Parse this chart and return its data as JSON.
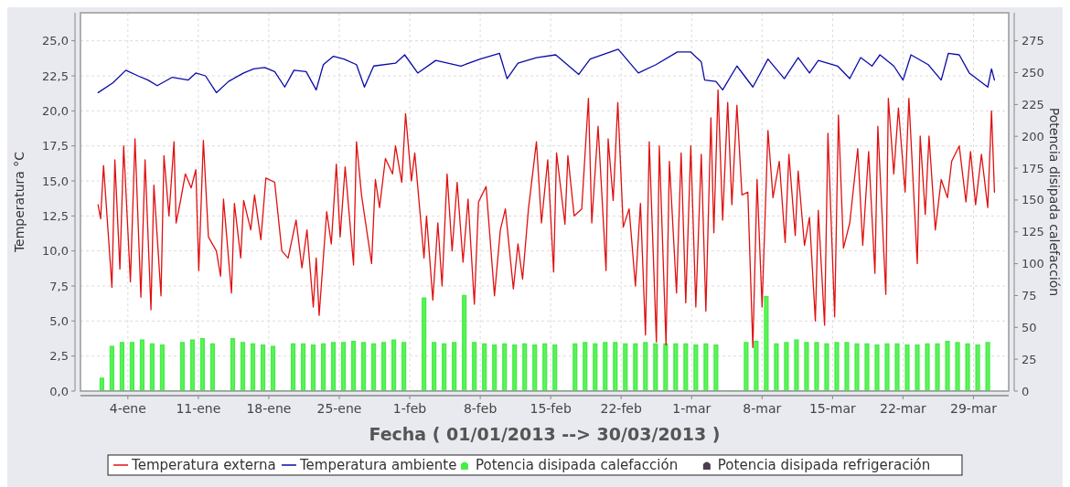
{
  "chart_data": {
    "type": "line",
    "xlabel": "Fecha ( 01/01/2013 --> 30/03/2013 )",
    "ylabel": "Temperatura °C",
    "y2label": "Potencia disipada calefacción",
    "xlim": [
      "2012-12-30T07:00",
      "2013-04-01T12:00"
    ],
    "xticks": [
      {
        "value": "2013-01-04",
        "label": "4-ene"
      },
      {
        "value": "2013-01-11",
        "label": "11-ene"
      },
      {
        "value": "2013-01-18",
        "label": "18-ene"
      },
      {
        "value": "2013-01-25",
        "label": "25-ene"
      },
      {
        "value": "2013-02-01",
        "label": "1-feb"
      },
      {
        "value": "2013-02-08",
        "label": "8-feb"
      },
      {
        "value": "2013-02-15",
        "label": "15-feb"
      },
      {
        "value": "2013-02-22",
        "label": "22-feb"
      },
      {
        "value": "2013-03-01",
        "label": "1-mar"
      },
      {
        "value": "2013-03-08",
        "label": "8-mar"
      },
      {
        "value": "2013-03-15",
        "label": "15-mar"
      },
      {
        "value": "2013-03-22",
        "label": "22-mar"
      },
      {
        "value": "2013-03-29",
        "label": "29-mar"
      }
    ],
    "ylim": [
      0,
      27
    ],
    "yticks": [
      {
        "value": 0,
        "label": "0,0"
      },
      {
        "value": 2.5,
        "label": "2,5"
      },
      {
        "value": 5,
        "label": "5,0"
      },
      {
        "value": 7.5,
        "label": "7,5"
      },
      {
        "value": 10,
        "label": "10,0"
      },
      {
        "value": 12.5,
        "label": "12,5"
      },
      {
        "value": 15,
        "label": "15,0"
      },
      {
        "value": 17.5,
        "label": "17,5"
      },
      {
        "value": 20,
        "label": "20,0"
      },
      {
        "value": 22.5,
        "label": "22,5"
      },
      {
        "value": 25,
        "label": "25,0"
      }
    ],
    "y2lim": [
      0,
      297
    ],
    "y2ticks": [
      0,
      25,
      50,
      75,
      100,
      125,
      150,
      175,
      200,
      225,
      250,
      275
    ],
    "grid": true,
    "legend": "bottom",
    "series": [
      {
        "name": "Temperatura externa",
        "color": "#e01010",
        "x": [
          "2013-01-01T01:00",
          "2013-01-01T07:00",
          "2013-01-01T14:00",
          "2013-01-02T10:00",
          "2013-01-02T17:00",
          "2013-01-03T05:00",
          "2013-01-03T14:00",
          "2013-01-04T06:00",
          "2013-01-04T17:00",
          "2013-01-05T07:00",
          "2013-01-05T17:00",
          "2013-01-06T07:00",
          "2013-01-06T14:00",
          "2013-01-07T07:00",
          "2013-01-07T14:00",
          "2013-01-08T02:00",
          "2013-01-08T14:00",
          "2013-01-08T19:00",
          "2013-01-09T05:00",
          "2013-01-09T17:00",
          "2013-01-10T07:00",
          "2013-01-10T18:00",
          "2013-01-11T01:00",
          "2013-01-11T12:00",
          "2013-01-12T00:00",
          "2013-01-12T19:00",
          "2013-01-13T05:00",
          "2013-01-13T12:00",
          "2013-01-14T07:00",
          "2013-01-14T14:00",
          "2013-01-15T05:00",
          "2013-01-15T12:00",
          "2013-01-16T05:00",
          "2013-01-16T14:00",
          "2013-01-17T05:00",
          "2013-01-17T17:00",
          "2013-01-18T14:00",
          "2013-01-19T07:00",
          "2013-01-19T22:00",
          "2013-01-20T17:00",
          "2013-01-21T07:00",
          "2013-01-21T19:00",
          "2013-01-22T10:00",
          "2013-01-22T17:00",
          "2013-01-23T00:00",
          "2013-01-23T18:00",
          "2013-01-24T05:00",
          "2013-01-24T17:00",
          "2013-01-25T02:00",
          "2013-01-25T14:00",
          "2013-01-26T10:00",
          "2013-01-26T17:00",
          "2013-01-27T05:00",
          "2013-01-28T05:00",
          "2013-01-28T14:00",
          "2013-01-29T00:00",
          "2013-01-29T14:00",
          "2013-01-30T07:00",
          "2013-01-30T14:00",
          "2013-01-31T05:00",
          "2013-01-31T14:00",
          "2013-02-01T04:00",
          "2013-02-01T12:00",
          "2013-02-02T10:00",
          "2013-02-02T16:00",
          "2013-02-03T07:00",
          "2013-02-03T19:00",
          "2013-02-04T05:00",
          "2013-02-04T17:00",
          "2013-02-05T05:00",
          "2013-02-05T17:00",
          "2013-02-06T07:00",
          "2013-02-06T19:00",
          "2013-02-07T10:00",
          "2013-02-07T20:00",
          "2013-02-08T14:00",
          "2013-02-09T10:00",
          "2013-02-10T00:00",
          "2013-02-10T12:00",
          "2013-02-11T07:00",
          "2013-02-11T18:00",
          "2013-02-12T05:00",
          "2013-02-12T19:00",
          "2013-02-13T14:00",
          "2013-02-14T02:00",
          "2013-02-14T17:00",
          "2013-02-15T07:00",
          "2013-02-15T14:00",
          "2013-02-16T10:00",
          "2013-02-16T17:00",
          "2013-02-17T08:00",
          "2013-02-18T02:00",
          "2013-02-18T18:00",
          "2013-02-19T02:00",
          "2013-02-19T17:00",
          "2013-02-20T12:00",
          "2013-02-20T17:00",
          "2013-02-21T05:00",
          "2013-02-21T16:00",
          "2013-02-22T05:00",
          "2013-02-22T19:00",
          "2013-02-23T10:00",
          "2013-02-23T22:00",
          "2013-02-24T10:00",
          "2013-02-24T19:00",
          "2013-02-25T12:00",
          "2013-02-25T19:00",
          "2013-02-26T11:00",
          "2013-02-26T19:00",
          "2013-02-27T12:00",
          "2013-02-27T23:00",
          "2013-02-28T10:00",
          "2013-02-28T22:00",
          "2013-03-01T10:00",
          "2013-03-01T23:00",
          "2013-03-02T10:00",
          "2013-03-02T22:00",
          "2013-03-03T05:00",
          "2013-03-03T15:00",
          "2013-03-04T02:00",
          "2013-03-04T14:00",
          "2013-03-05T00:00",
          "2013-03-05T12:00",
          "2013-03-06T00:00",
          "2013-03-06T14:00",
          "2013-03-07T02:00",
          "2013-03-07T12:00",
          "2013-03-08T00:00",
          "2013-03-08T14:00",
          "2013-03-09T02:00",
          "2013-03-09T17:00",
          "2013-03-10T07:00",
          "2013-03-10T16:00",
          "2013-03-11T07:00",
          "2013-03-11T14:00",
          "2013-03-12T05:00",
          "2013-03-12T17:00",
          "2013-03-13T07:00",
          "2013-03-13T14:00",
          "2013-03-14T05:00",
          "2013-03-14T13:00",
          "2013-03-15T05:00",
          "2013-03-15T14:00",
          "2013-03-16T02:00",
          "2013-03-16T17:00",
          "2013-03-17T12:00",
          "2013-03-18T00:00",
          "2013-03-18T14:00",
          "2013-03-19T05:00",
          "2013-03-19T12:00",
          "2013-03-20T07:00",
          "2013-03-20T13:00",
          "2013-03-21T02:00",
          "2013-03-21T13:00",
          "2013-03-22T05:00",
          "2013-03-22T14:00",
          "2013-03-23T10:00",
          "2013-03-23T17:00",
          "2013-03-24T05:00",
          "2013-03-24T14:00",
          "2013-03-25T05:00",
          "2013-03-25T19:00",
          "2013-03-26T10:00",
          "2013-03-26T20:00",
          "2013-03-27T14:00",
          "2013-03-28T06:00",
          "2013-03-28T17:00",
          "2013-03-29T05:00",
          "2013-03-29T19:00",
          "2013-03-30T10:00",
          "2013-03-30T19:00",
          "2013-03-31T02:00"
        ],
        "values": [
          13.3,
          12.3,
          16.1,
          7.4,
          16.5,
          8.7,
          17.5,
          7.8,
          18.0,
          6.7,
          16.5,
          5.8,
          14.7,
          6.8,
          16.8,
          12.5,
          17.8,
          12.0,
          13.5,
          15.5,
          14.5,
          15.8,
          8.6,
          17.9,
          11.0,
          10.0,
          8.2,
          13.7,
          7.0,
          13.4,
          9.5,
          13.6,
          11.5,
          14.0,
          10.8,
          15.2,
          14.9,
          10.0,
          9.5,
          12.2,
          8.8,
          11.5,
          6.0,
          9.5,
          5.4,
          12.8,
          10.5,
          16.2,
          11.0,
          16.0,
          9.0,
          17.8,
          14.0,
          9.1,
          15.1,
          13.1,
          16.6,
          15.5,
          17.5,
          14.9,
          19.8,
          15.0,
          17.0,
          9.5,
          12.5,
          6.5,
          12.0,
          7.5,
          15.5,
          10.0,
          14.9,
          9.2,
          13.7,
          6.2,
          13.5,
          14.6,
          6.8,
          11.5,
          13.0,
          7.3,
          10.5,
          8.0,
          13.0,
          17.8,
          12.0,
          16.5,
          8.5,
          17.0,
          11.9,
          16.8,
          12.5,
          13.0,
          20.9,
          12.0,
          18.9,
          8.6,
          18.0,
          13.6,
          20.6,
          11.7,
          13.0,
          7.5,
          13.4,
          4.0,
          17.8,
          3.5,
          17.5,
          3.3,
          16.4,
          7.0,
          17.0,
          6.3,
          17.5,
          6.0,
          16.9,
          5.7,
          19.5,
          11.3,
          21.5,
          12.2,
          20.6,
          13.3,
          20.4,
          14.0,
          14.2,
          3.1,
          15.1,
          6.0,
          18.6,
          13.8,
          16.4,
          10.6,
          16.9,
          11.1,
          15.7,
          10.4,
          12.4,
          5.0,
          12.9,
          4.7,
          18.4,
          5.3,
          19.7,
          10.2,
          12.0,
          17.3,
          10.4,
          17.1,
          8.4,
          18.9,
          6.9,
          20.9,
          15.5,
          20.2,
          14.2,
          20.9,
          9.1,
          18.2,
          12.6,
          18.2,
          11.5,
          15.1,
          13.8,
          16.4,
          17.5,
          13.5,
          17.1,
          13.3,
          16.9,
          13.1,
          20.0,
          14.2
        ]
      },
      {
        "name": "Temperatura ambiente",
        "color": "#0a0aa8",
        "x": [
          "2013-01-01T01:00",
          "2013-01-02T12:00",
          "2013-01-03T19:00",
          "2013-01-05T00:00",
          "2013-01-06T00:00",
          "2013-01-06T22:00",
          "2013-01-08T10:00",
          "2013-01-10T00:00",
          "2013-01-10T18:00",
          "2013-01-11T17:00",
          "2013-01-12T19:00",
          "2013-01-14T00:00",
          "2013-01-15T12:00",
          "2013-01-16T12:00",
          "2013-01-17T14:00",
          "2013-01-18T14:00",
          "2013-01-19T14:00",
          "2013-01-20T12:00",
          "2013-01-21T17:00",
          "2013-01-22T17:00",
          "2013-01-23T10:00",
          "2013-01-24T10:00",
          "2013-01-25T11:00",
          "2013-01-26T17:00",
          "2013-01-27T12:00",
          "2013-01-28T10:00",
          "2013-01-30T14:00",
          "2013-01-31T12:00",
          "2013-02-01T19:00",
          "2013-02-03T14:00",
          "2013-02-06T02:00",
          "2013-02-08T00:00",
          "2013-02-09T22:00",
          "2013-02-10T16:00",
          "2013-02-11T18:00",
          "2013-02-13T14:00",
          "2013-02-15T12:00",
          "2013-02-17T19:00",
          "2013-02-18T22:00",
          "2013-02-21T17:00",
          "2013-02-23T17:00",
          "2013-02-25T11:00",
          "2013-02-27T14:00",
          "2013-02-28T22:00",
          "2013-03-01T23:00",
          "2013-03-02T07:00",
          "2013-03-03T10:00",
          "2013-03-04T02:00",
          "2013-03-05T12:00",
          "2013-03-07T02:00",
          "2013-03-08T14:00",
          "2013-03-10T05:00",
          "2013-03-11T14:00",
          "2013-03-12T17:00",
          "2013-03-13T14:00",
          "2013-03-15T12:00",
          "2013-03-16T17:00",
          "2013-03-17T19:00",
          "2013-03-18T22:00",
          "2013-03-19T17:00",
          "2013-03-21T02:00",
          "2013-03-22T00:00",
          "2013-03-22T19:00",
          "2013-03-24T12:00",
          "2013-03-25T19:00",
          "2013-03-26T12:00",
          "2013-03-27T14:00",
          "2013-03-28T14:00",
          "2013-03-30T10:00",
          "2013-03-30T19:00",
          "2013-03-31T02:00"
        ],
        "values": [
          21.3,
          22.0,
          22.9,
          22.5,
          22.2,
          21.8,
          22.4,
          22.2,
          22.7,
          22.5,
          21.3,
          22.1,
          22.7,
          23.0,
          23.1,
          22.8,
          21.7,
          22.9,
          22.8,
          21.5,
          23.3,
          23.9,
          23.7,
          23.3,
          21.7,
          23.2,
          23.4,
          24.0,
          22.7,
          23.6,
          23.2,
          23.7,
          24.1,
          22.3,
          23.4,
          23.8,
          24.0,
          22.6,
          23.7,
          24.4,
          22.7,
          23.3,
          24.2,
          24.2,
          23.5,
          22.2,
          22.1,
          21.5,
          23.2,
          21.7,
          23.7,
          22.3,
          23.8,
          22.7,
          23.6,
          23.2,
          22.3,
          23.8,
          23.2,
          24.0,
          23.2,
          22.2,
          24.0,
          23.3,
          22.2,
          24.1,
          24.0,
          22.7,
          21.7,
          23.0,
          22.2
        ]
      },
      {
        "name": "Potencia disipada calefacción",
        "color": "#44ee44",
        "type": "area",
        "axis": "y2",
        "x": [
          "2013-01-01T06:00",
          "2013-01-01T14:00",
          "2013-01-02T06:00",
          "2013-01-02T14:00",
          "2013-01-03T06:00",
          "2013-01-03T14:00",
          "2013-01-04T06:00",
          "2013-01-04T14:00",
          "2013-01-05T06:00",
          "2013-01-05T14:00",
          "2013-01-06T06:00",
          "2013-01-06T14:00",
          "2013-01-07T06:00",
          "2013-01-07T14:00",
          "2013-01-09T06:00",
          "2013-01-09T14:00",
          "2013-01-10T06:00",
          "2013-01-10T14:00",
          "2013-01-11T06:00",
          "2013-01-11T14:00",
          "2013-01-12T06:00",
          "2013-01-12T14:00",
          "2013-01-14T06:00",
          "2013-01-14T14:00",
          "2013-01-15T06:00",
          "2013-01-15T14:00",
          "2013-01-16T06:00",
          "2013-01-16T14:00",
          "2013-01-17T06:00",
          "2013-01-17T14:00",
          "2013-01-18T06:00",
          "2013-01-18T14:00",
          "2013-01-20T06:00",
          "2013-01-20T14:00",
          "2013-01-21T06:00",
          "2013-01-21T14:00",
          "2013-01-22T06:00",
          "2013-01-22T14:00",
          "2013-01-23T06:00",
          "2013-01-23T14:00",
          "2013-01-24T06:00",
          "2013-01-24T14:00",
          "2013-01-25T06:00",
          "2013-01-25T14:00",
          "2013-01-26T06:00",
          "2013-01-26T14:00",
          "2013-01-27T06:00",
          "2013-01-27T14:00",
          "2013-01-28T06:00",
          "2013-01-28T14:00",
          "2013-01-29T06:00",
          "2013-01-29T14:00",
          "2013-01-30T06:00",
          "2013-01-30T14:00",
          "2013-01-31T06:00",
          "2013-01-31T14:00",
          "2013-02-02T06:00",
          "2013-02-02T14:00",
          "2013-02-03T06:00",
          "2013-02-03T14:00",
          "2013-02-04T06:00",
          "2013-02-04T14:00",
          "2013-02-05T06:00",
          "2013-02-05T14:00",
          "2013-02-06T06:00",
          "2013-02-06T14:00",
          "2013-02-07T06:00",
          "2013-02-07T14:00",
          "2013-02-08T06:00",
          "2013-02-08T14:00",
          "2013-02-09T06:00",
          "2013-02-09T14:00",
          "2013-02-10T06:00",
          "2013-02-10T14:00",
          "2013-02-11T06:00",
          "2013-02-11T14:00",
          "2013-02-12T06:00",
          "2013-02-12T14:00",
          "2013-02-13T06:00",
          "2013-02-13T14:00",
          "2013-02-14T06:00",
          "2013-02-14T14:00",
          "2013-02-15T06:00",
          "2013-02-15T14:00",
          "2013-02-17T06:00",
          "2013-02-17T14:00",
          "2013-02-18T06:00",
          "2013-02-18T14:00",
          "2013-02-19T06:00",
          "2013-02-19T14:00",
          "2013-02-20T06:00",
          "2013-02-20T14:00",
          "2013-02-21T06:00",
          "2013-02-21T14:00",
          "2013-02-22T06:00",
          "2013-02-22T14:00",
          "2013-02-23T06:00",
          "2013-02-23T14:00",
          "2013-02-24T06:00",
          "2013-02-24T14:00",
          "2013-02-25T06:00",
          "2013-02-25T14:00",
          "2013-02-26T06:00",
          "2013-02-26T14:00",
          "2013-02-27T06:00",
          "2013-02-27T14:00",
          "2013-02-28T06:00",
          "2013-02-28T14:00",
          "2013-03-01T06:00",
          "2013-03-01T14:00",
          "2013-03-02T06:00",
          "2013-03-02T14:00",
          "2013-03-03T06:00",
          "2013-03-03T14:00",
          "2013-03-06T06:00",
          "2013-03-06T14:00",
          "2013-03-07T06:00",
          "2013-03-07T14:00",
          "2013-03-08T06:00",
          "2013-03-08T14:00",
          "2013-03-09T06:00",
          "2013-03-09T14:00",
          "2013-03-10T06:00",
          "2013-03-10T14:00",
          "2013-03-11T06:00",
          "2013-03-11T14:00",
          "2013-03-12T06:00",
          "2013-03-12T14:00",
          "2013-03-13T06:00",
          "2013-03-13T14:00",
          "2013-03-14T06:00",
          "2013-03-14T14:00",
          "2013-03-15T06:00",
          "2013-03-15T14:00",
          "2013-03-16T06:00",
          "2013-03-16T14:00",
          "2013-03-17T06:00",
          "2013-03-17T14:00",
          "2013-03-18T06:00",
          "2013-03-18T14:00",
          "2013-03-19T06:00",
          "2013-03-19T14:00",
          "2013-03-20T06:00",
          "2013-03-20T14:00",
          "2013-03-21T06:00",
          "2013-03-21T14:00",
          "2013-03-22T06:00",
          "2013-03-22T14:00",
          "2013-03-23T06:00",
          "2013-03-23T14:00",
          "2013-03-24T06:00",
          "2013-03-24T14:00",
          "2013-03-25T06:00",
          "2013-03-25T14:00",
          "2013-03-26T06:00",
          "2013-03-26T14:00",
          "2013-03-27T06:00",
          "2013-03-27T14:00",
          "2013-03-28T06:00",
          "2013-03-28T14:00",
          "2013-03-29T06:00",
          "2013-03-29T14:00",
          "2013-03-30T06:00",
          "2013-03-30T14:00"
        ],
        "values": [
          10,
          0,
          35,
          0,
          38,
          0,
          38,
          0,
          40,
          0,
          37,
          0,
          36,
          0,
          38,
          0,
          40,
          0,
          41,
          0,
          37,
          0,
          41,
          0,
          38,
          0,
          37,
          0,
          36,
          0,
          35,
          0,
          37,
          0,
          37,
          0,
          36,
          0,
          37,
          0,
          38,
          0,
          38,
          0,
          39,
          0,
          38,
          0,
          37,
          0,
          38,
          0,
          40,
          0,
          38,
          0,
          73,
          0,
          38,
          0,
          37,
          0,
          38,
          0,
          75,
          0,
          38,
          0,
          37,
          0,
          36,
          0,
          37,
          0,
          36,
          0,
          37,
          0,
          36,
          0,
          37,
          0,
          36,
          0,
          37,
          0,
          38,
          0,
          37,
          0,
          38,
          0,
          38,
          0,
          37,
          0,
          37,
          0,
          38,
          0,
          37,
          0,
          37,
          0,
          37,
          0,
          37,
          0,
          36,
          0,
          37,
          0,
          36,
          0,
          38,
          0,
          39,
          0,
          74,
          0,
          37,
          0,
          38,
          0,
          40,
          0,
          38,
          0,
          38,
          0,
          37,
          0,
          38,
          0,
          38,
          0,
          37,
          0,
          37,
          0,
          36,
          0,
          37,
          0,
          37,
          0,
          36,
          0,
          36,
          0,
          37,
          0,
          37,
          0,
          39,
          0,
          38,
          0,
          37,
          0,
          36,
          0,
          38,
          0
        ]
      },
      {
        "name": "Potencia disipada refrigeración",
        "color": "#4b3d4f",
        "type": "area"
      }
    ]
  }
}
